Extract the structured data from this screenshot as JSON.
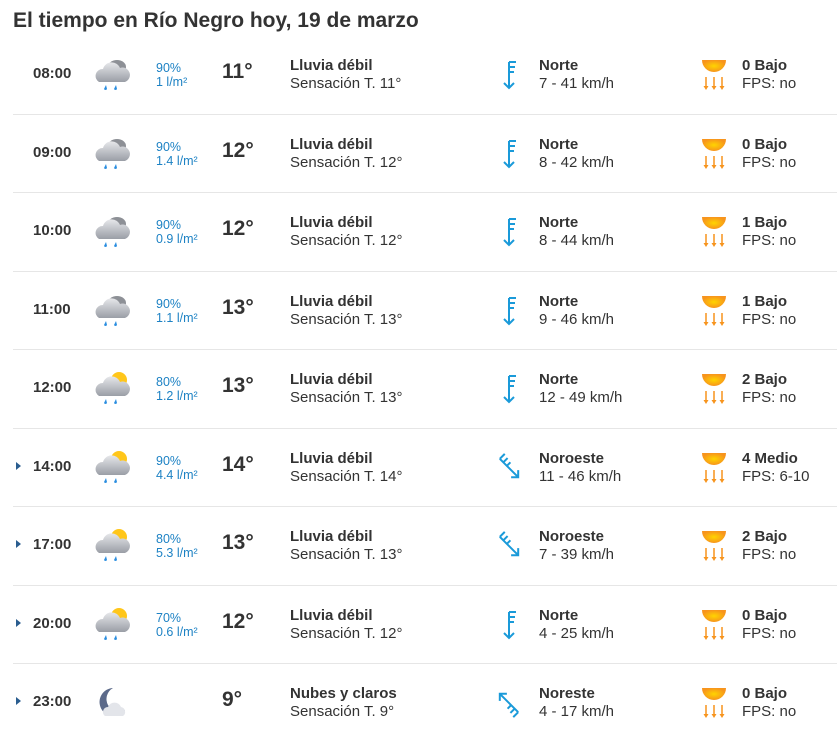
{
  "title": "El tiempo en Río Negro hoy, 19 de marzo",
  "colors": {
    "precip": "#1d82c4",
    "wind_arrow": "#1a9ad9",
    "uv_sun": "#f7941d"
  },
  "rows": [
    {
      "expandable": false,
      "time": "08:00",
      "icon": "rain-cloud-icon",
      "prob": "90%",
      "amount": "1 l/m²",
      "temp": "11°",
      "desc": "Lluvia débil",
      "feels": "Sensación T. 11°",
      "wind_dir": "Norte",
      "wind_speed": "7 - 41 km/h",
      "uv": "0 Bajo",
      "fps": "FPS: no"
    },
    {
      "expandable": false,
      "time": "09:00",
      "icon": "rain-cloud-icon",
      "prob": "90%",
      "amount": "1.4 l/m²",
      "temp": "12°",
      "desc": "Lluvia débil",
      "feels": "Sensación T. 12°",
      "wind_dir": "Norte",
      "wind_speed": "8 - 42 km/h",
      "uv": "0 Bajo",
      "fps": "FPS: no"
    },
    {
      "expandable": false,
      "time": "10:00",
      "icon": "rain-cloud-icon",
      "prob": "90%",
      "amount": "0.9 l/m²",
      "temp": "12°",
      "desc": "Lluvia débil",
      "feels": "Sensación T. 12°",
      "wind_dir": "Norte",
      "wind_speed": "8 - 44 km/h",
      "uv": "1 Bajo",
      "fps": "FPS: no"
    },
    {
      "expandable": false,
      "time": "11:00",
      "icon": "rain-cloud-icon",
      "prob": "90%",
      "amount": "1.1 l/m²",
      "temp": "13°",
      "desc": "Lluvia débil",
      "feels": "Sensación T. 13°",
      "wind_dir": "Norte",
      "wind_speed": "9 - 46 km/h",
      "uv": "1 Bajo",
      "fps": "FPS: no"
    },
    {
      "expandable": false,
      "time": "12:00",
      "icon": "sun-rain-cloud-icon",
      "prob": "80%",
      "amount": "1.2 l/m²",
      "temp": "13°",
      "desc": "Lluvia débil",
      "feels": "Sensación T. 13°",
      "wind_dir": "Norte",
      "wind_speed": "12 - 49 km/h",
      "uv": "2 Bajo",
      "fps": "FPS: no"
    },
    {
      "expandable": true,
      "time": "14:00",
      "icon": "sun-rain-cloud-icon",
      "prob": "90%",
      "amount": "4.4 l/m²",
      "temp": "14°",
      "desc": "Lluvia débil",
      "feels": "Sensación T. 14°",
      "wind_dir": "Noroeste",
      "wind_speed": "11 - 46 km/h",
      "uv": "4 Medio",
      "fps": "FPS: 6-10"
    },
    {
      "expandable": true,
      "time": "17:00",
      "icon": "sun-rain-cloud-icon",
      "prob": "80%",
      "amount": "5.3 l/m²",
      "temp": "13°",
      "desc": "Lluvia débil",
      "feels": "Sensación T. 13°",
      "wind_dir": "Noroeste",
      "wind_speed": "7 - 39 km/h",
      "uv": "2 Bajo",
      "fps": "FPS: no"
    },
    {
      "expandable": true,
      "time": "20:00",
      "icon": "sun-rain-cloud-icon",
      "prob": "70%",
      "amount": "0.6 l/m²",
      "temp": "12°",
      "desc": "Lluvia débil",
      "feels": "Sensación T. 12°",
      "wind_dir": "Norte",
      "wind_speed": "4 - 25 km/h",
      "uv": "0 Bajo",
      "fps": "FPS: no"
    },
    {
      "expandable": true,
      "time": "23:00",
      "icon": "moon-cloud-icon",
      "prob": "",
      "amount": "",
      "temp": "9°",
      "desc": "Nubes y claros",
      "feels": "Sensación T. 9°",
      "wind_dir": "Noreste",
      "wind_speed": "4 - 17 km/h",
      "uv": "0 Bajo",
      "fps": "FPS: no"
    }
  ]
}
